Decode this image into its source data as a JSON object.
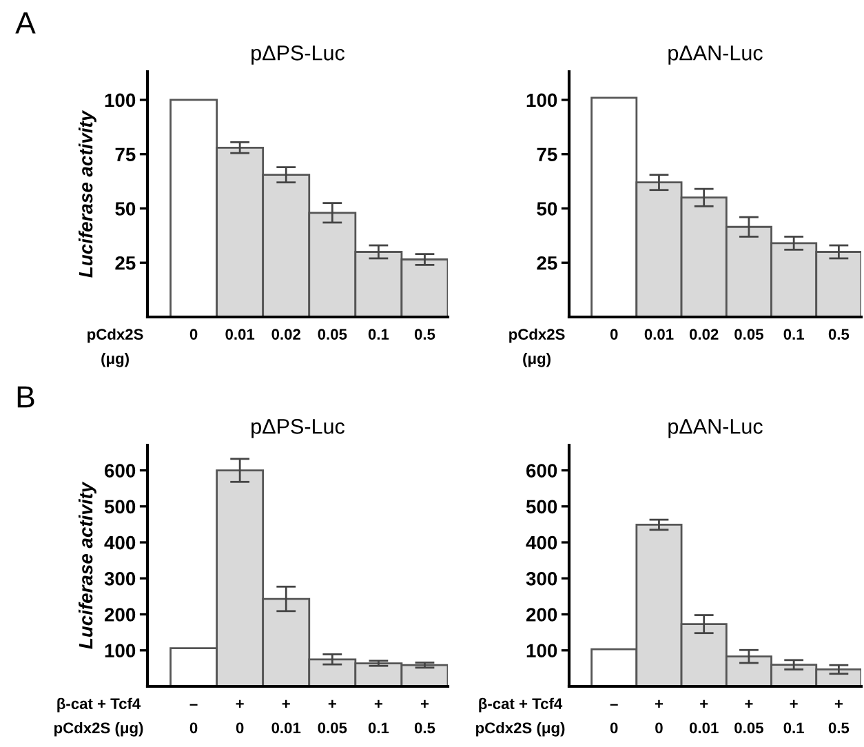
{
  "chart_data": [
    {
      "type": "bar",
      "title": "pΔPS-Luc",
      "ylabel": "Luciferase activity",
      "xlabel": "pCdx2S\n(μg)",
      "annotations": [
        "A"
      ],
      "categories": [
        "0",
        "0.01",
        "0.02",
        "0.05",
        "0.1",
        "0.5"
      ],
      "values": [
        100,
        78,
        65.5,
        48,
        30,
        26.5
      ],
      "errors": [
        null,
        2.5,
        3.5,
        4.5,
        3,
        2.5
      ],
      "colors": [
        "#ffffff",
        "#d9d9d9",
        "#d9d9d9",
        "#d9d9d9",
        "#d9d9d9",
        "#d9d9d9"
      ],
      "ylim": [
        0,
        113
      ],
      "yticks": [
        25,
        50,
        75,
        100
      ],
      "grid": false
    },
    {
      "type": "bar",
      "title": "pΔAN-Luc",
      "xlabel": "pCdx2S\n(μg)",
      "categories": [
        "0",
        "0.01",
        "0.02",
        "0.05",
        "0.1",
        "0.5"
      ],
      "values": [
        101,
        62,
        55,
        41.5,
        34,
        30
      ],
      "errors": [
        null,
        3.5,
        4,
        4.5,
        3,
        3
      ],
      "colors": [
        "#ffffff",
        "#d9d9d9",
        "#d9d9d9",
        "#d9d9d9",
        "#d9d9d9",
        "#d9d9d9"
      ],
      "ylim": [
        0,
        113
      ],
      "yticks": [
        25,
        50,
        75,
        100
      ],
      "grid": false
    },
    {
      "type": "bar",
      "title": "pΔPS-Luc",
      "ylabel": "Luciferase activity",
      "xlabel": "β-cat + Tcf4\npCdx2S (μg)",
      "annotations": [
        "B"
      ],
      "categories": [
        "–\n0",
        "+\n0",
        "+\n0.01",
        "+\n0.05",
        "+\n0.1",
        "+\n0.5"
      ],
      "values": [
        106,
        600,
        243,
        75,
        64,
        59
      ],
      "errors": [
        null,
        32,
        34,
        14,
        7,
        7
      ],
      "colors": [
        "#ffffff",
        "#d9d9d9",
        "#d9d9d9",
        "#d9d9d9",
        "#d9d9d9",
        "#d9d9d9"
      ],
      "ylim": [
        0,
        670
      ],
      "yticks": [
        100,
        200,
        300,
        400,
        500,
        600
      ],
      "grid": false
    },
    {
      "type": "bar",
      "title": "pΔAN-Luc",
      "xlabel": "β-cat + Tcf4\npCdx2S (μg)",
      "categories": [
        "–\n0",
        "+\n0",
        "+\n0.01",
        "+\n0.05",
        "+\n0.1",
        "+\n0.5"
      ],
      "values": [
        103,
        449,
        173,
        83,
        60,
        47
      ],
      "errors": [
        null,
        14,
        25,
        18,
        13,
        12
      ],
      "colors": [
        "#ffffff",
        "#d9d9d9",
        "#d9d9d9",
        "#d9d9d9",
        "#d9d9d9",
        "#d9d9d9"
      ],
      "ylim": [
        0,
        670
      ],
      "yticks": [
        100,
        200,
        300,
        400,
        500,
        600
      ],
      "grid": false
    }
  ]
}
